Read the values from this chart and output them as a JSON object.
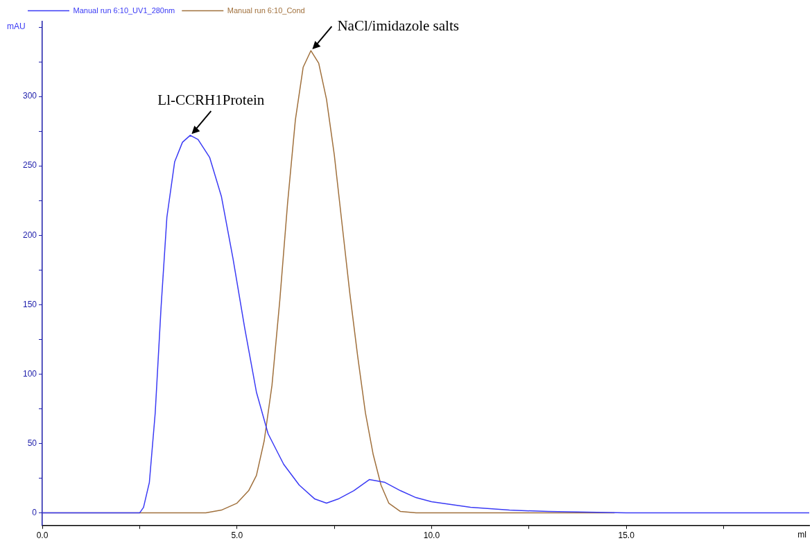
{
  "chart_data": {
    "type": "line",
    "xlabel": "ml",
    "ylabel": "mAU",
    "xlim": [
      0,
      19.7
    ],
    "xticks": [
      {
        "value": 0,
        "label": "0.0"
      },
      {
        "value": 2.5,
        "label": null
      },
      {
        "value": 5,
        "label": "5.0"
      },
      {
        "value": 7.5,
        "label": null
      },
      {
        "value": 10,
        "label": "10.0"
      },
      {
        "value": 12.5,
        "label": null
      },
      {
        "value": 15,
        "label": "15.0"
      },
      {
        "value": 17.5,
        "label": null
      }
    ],
    "ylim": [
      -9,
      354
    ],
    "yticks": [
      0,
      {
        "value": 25,
        "label": null
      },
      50,
      {
        "value": 75,
        "label": null
      },
      100,
      {
        "value": 125,
        "label": null
      },
      150,
      {
        "value": 175,
        "label": null
      },
      200,
      {
        "value": 225,
        "label": null
      },
      250,
      {
        "value": 275,
        "label": null
      },
      300,
      {
        "value": 325,
        "label": null
      },
      {
        "value": 350,
        "label": null
      }
    ],
    "grid": false,
    "legend": "top left",
    "marker": "none",
    "line_style": "solid",
    "series": [
      {
        "name": "Manual run 6:10_UV1_280nm",
        "color": "#3a3af5",
        "x": [
          0,
          2.5,
          2.6,
          2.75,
          2.9,
          3.05,
          3.2,
          3.4,
          3.6,
          3.8,
          4.0,
          4.3,
          4.6,
          4.9,
          5.2,
          5.5,
          5.8,
          6.2,
          6.6,
          7.0,
          7.3,
          7.6,
          8.0,
          8.4,
          8.8,
          9.2,
          9.6,
          10,
          11,
          12,
          13,
          15,
          19.7
        ],
        "values": [
          0,
          0,
          4,
          22,
          72,
          148,
          213,
          253,
          267,
          272,
          269,
          256,
          228,
          183,
          133,
          87,
          57,
          35,
          20,
          10,
          7,
          10,
          16,
          24,
          22,
          16,
          11,
          8,
          4,
          2,
          1,
          0,
          0
        ]
      },
      {
        "name": "Manual run 6:10_Cond",
        "color": "#a0703c",
        "x": [
          0,
          4.2,
          4.6,
          5.0,
          5.3,
          5.5,
          5.7,
          5.9,
          6.1,
          6.3,
          6.5,
          6.7,
          6.9,
          7.1,
          7.3,
          7.5,
          7.7,
          7.9,
          8.1,
          8.3,
          8.5,
          8.7,
          8.9,
          9.2,
          9.6,
          14.7
        ],
        "values": [
          0,
          0,
          2,
          7,
          16,
          27,
          52,
          92,
          153,
          223,
          283,
          321,
          333,
          324,
          298,
          258,
          208,
          158,
          113,
          72,
          42,
          20,
          7,
          1,
          0,
          0
        ]
      }
    ],
    "annotations": [
      {
        "text": "Ll-CCRH1Protein",
        "x": 3.8,
        "y": 272
      },
      {
        "text": "NaCl/imidazole salts",
        "x": 6.9,
        "y": 333
      }
    ]
  }
}
